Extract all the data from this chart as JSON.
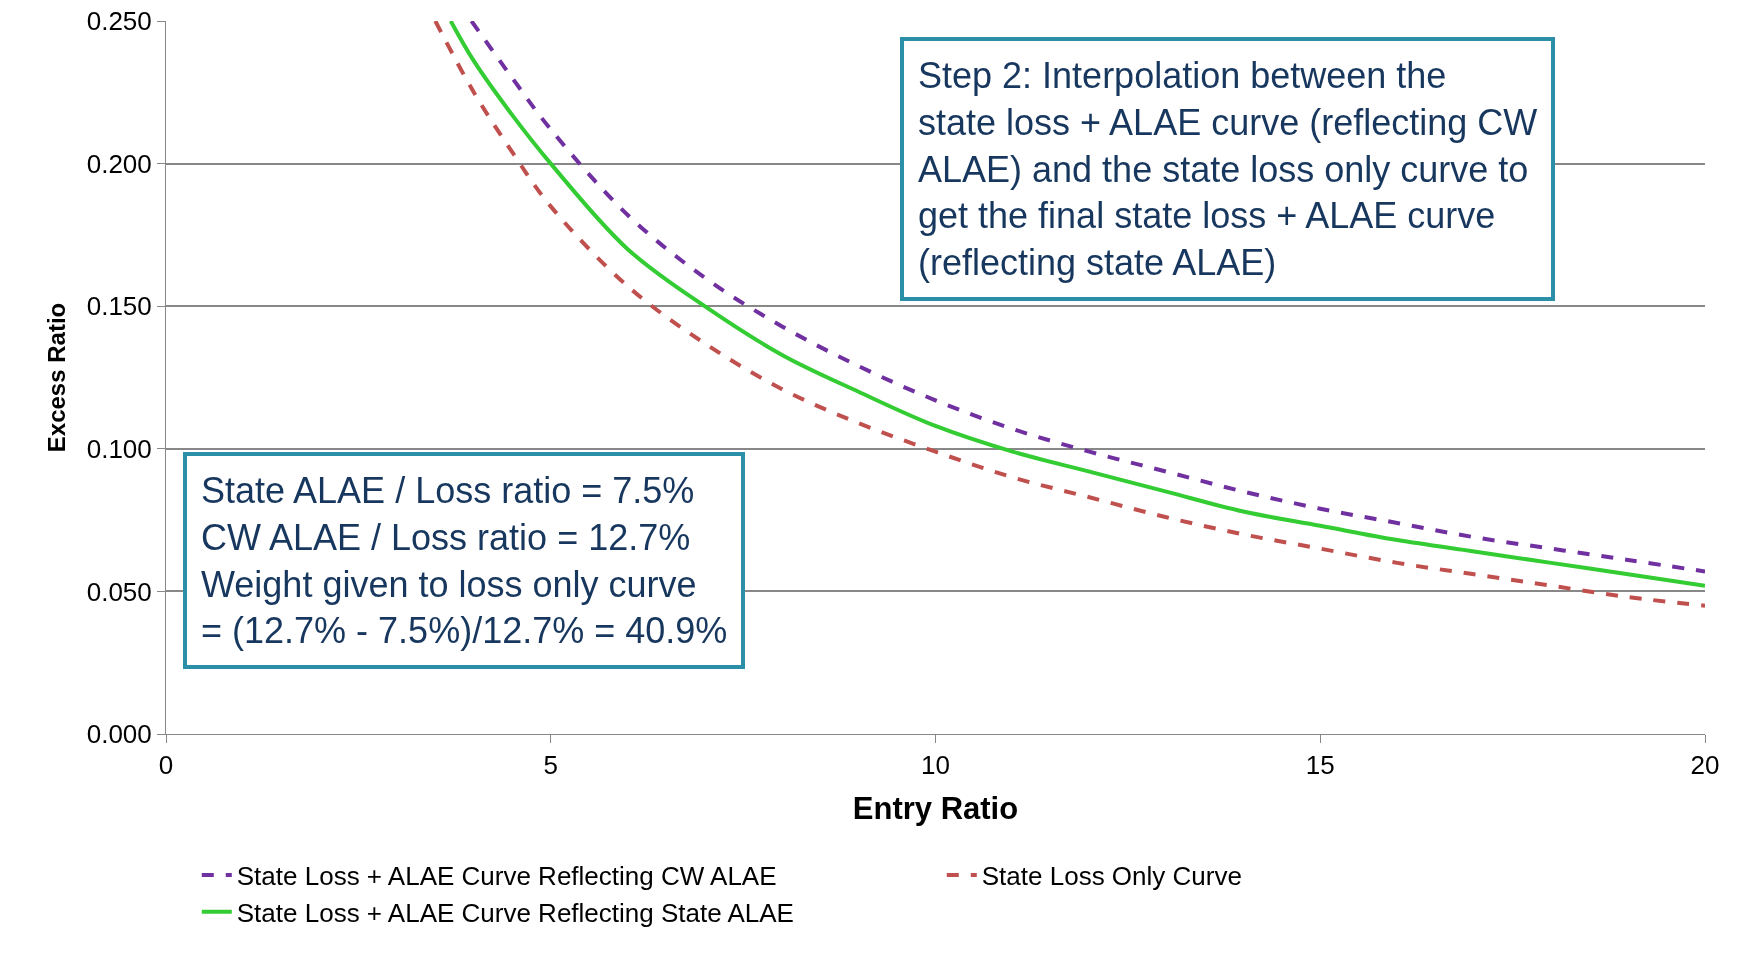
{
  "chart_data": {
    "type": "line",
    "xlabel": "Entry Ratio",
    "ylabel": "Excess Ratio",
    "xlim": [
      0,
      20
    ],
    "xticks": [
      0,
      5,
      10,
      15,
      20
    ],
    "ylim": [
      0,
      0.25
    ],
    "yticks": [
      {
        "value": 0,
        "label": "0.000"
      },
      {
        "value": 0.05,
        "label": "0.050"
      },
      {
        "value": 0.1,
        "label": "0.100"
      },
      {
        "value": 0.15,
        "label": "0.150"
      },
      {
        "value": 0.2,
        "label": "0.200"
      },
      {
        "value": 0.25,
        "label": "0.250"
      }
    ],
    "grid": "y",
    "legend": "bottom",
    "marker": "none",
    "series": [
      {
        "name": "State Loss + ALAE Curve Reflecting CW ALAE",
        "color": "#7030a0",
        "line_style": "dashed",
        "x": [
          3.97,
          4.5,
          5,
          6,
          7,
          8,
          9,
          10,
          11,
          12,
          13,
          14,
          15,
          16,
          17,
          18,
          19,
          20
        ],
        "values": [
          0.25,
          0.23,
          0.212,
          0.182,
          0.16,
          0.143,
          0.129,
          0.117,
          0.107,
          0.099,
          0.092,
          0.085,
          0.079,
          0.074,
          0.069,
          0.065,
          0.061,
          0.057
        ]
      },
      {
        "name": "State Loss Only Curve",
        "color": "#c0504d",
        "line_style": "dashed",
        "x": [
          3.5,
          4,
          4.5,
          5,
          6,
          7,
          8,
          9,
          10,
          11,
          12,
          13,
          14,
          15,
          16,
          17,
          18,
          19,
          20
        ],
        "values": [
          0.25,
          0.225,
          0.204,
          0.185,
          0.157,
          0.137,
          0.121,
          0.109,
          0.099,
          0.09,
          0.083,
          0.076,
          0.07,
          0.065,
          0.06,
          0.056,
          0.052,
          0.048,
          0.045
        ]
      },
      {
        "name": "State Loss + ALAE Curve Reflecting State ALAE",
        "color": "#33cc33",
        "line_style": "solid",
        "x": [
          3.7,
          4,
          4.5,
          5,
          6,
          7,
          8,
          9,
          10,
          11,
          12,
          13,
          14,
          15,
          16,
          17,
          18,
          19,
          20
        ],
        "values": [
          0.25,
          0.236,
          0.217,
          0.2,
          0.17,
          0.15,
          0.133,
          0.12,
          0.108,
          0.099,
          0.092,
          0.085,
          0.078,
          0.073,
          0.068,
          0.064,
          0.06,
          0.056,
          0.052
        ]
      }
    ],
    "annotations": [
      "Step 2: Interpolation between the\nstate loss + ALAE curve (reflecting CW\nALAE) and the state loss only curve to\nget the final state loss + ALAE curve\n(reflecting state ALAE)",
      "State ALAE / Loss ratio = 7.5%\nCW ALAE / Loss ratio = 12.7%\nWeight given to loss only curve\n= (12.7% - 7.5%)/12.7% = 40.9%"
    ]
  }
}
